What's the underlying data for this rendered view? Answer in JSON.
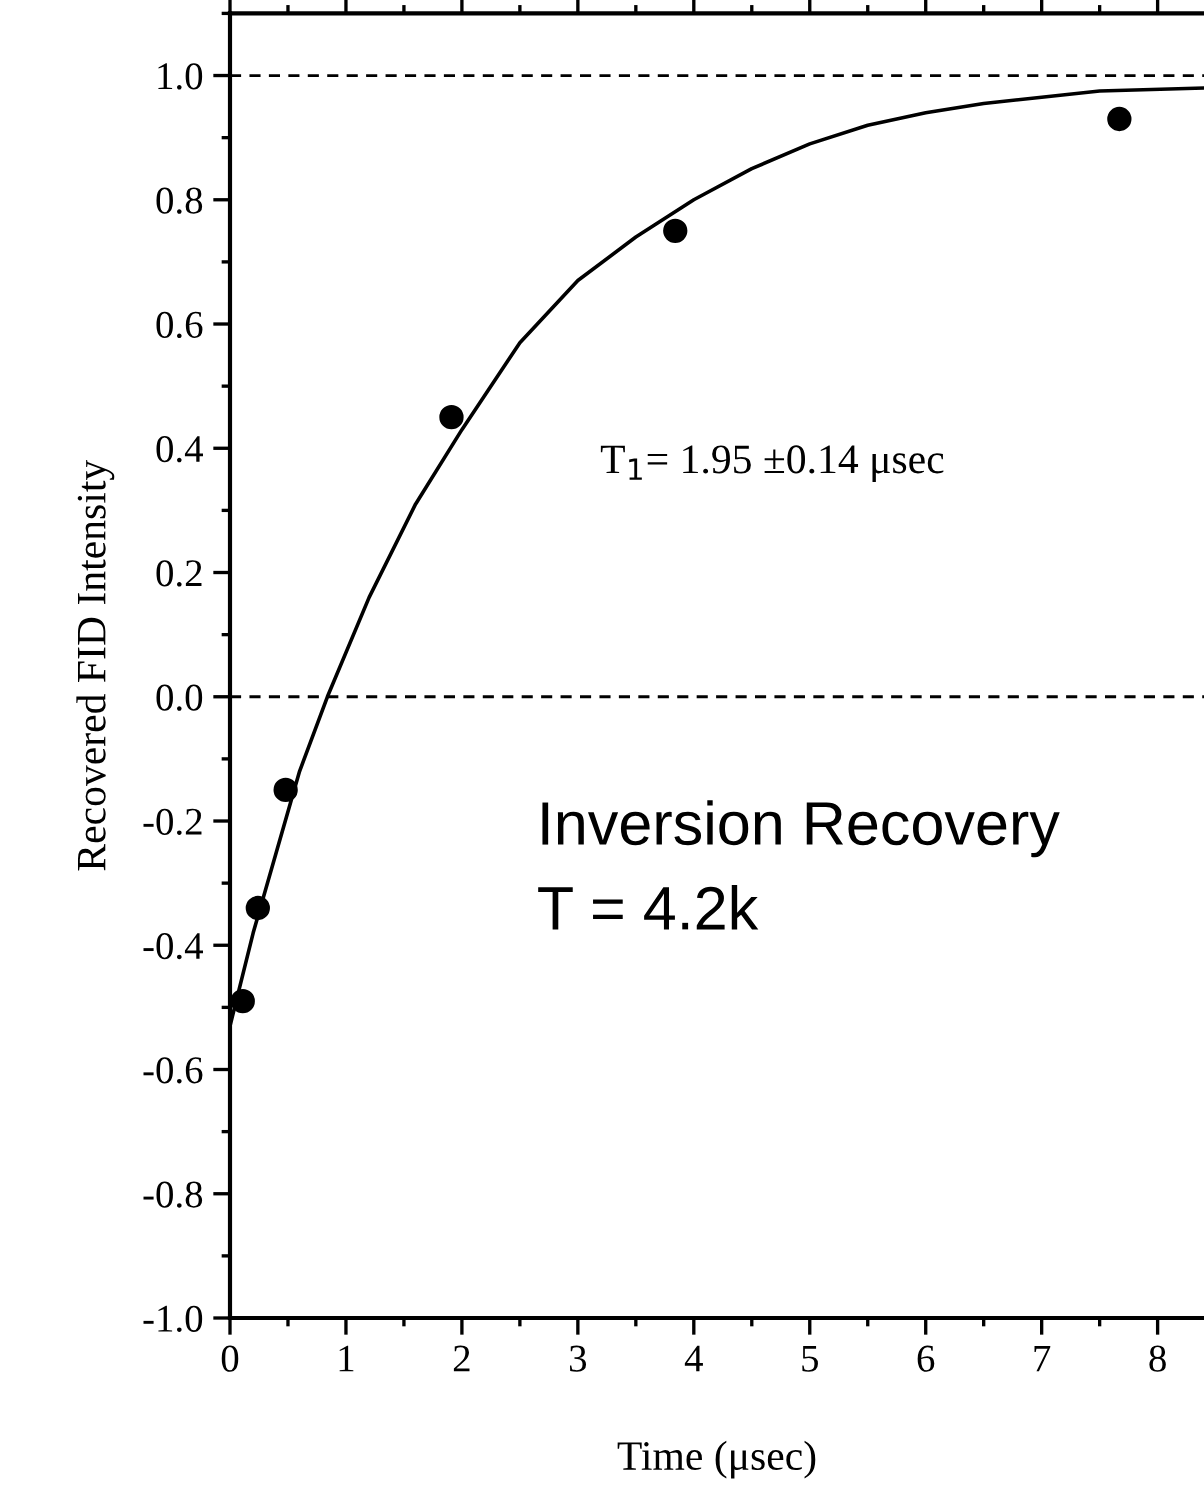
{
  "chart_data": {
    "type": "scatter",
    "xlabel": "Time (μsec)",
    "ylabel": "Recovered FID Intensity",
    "xlim": [
      0,
      8.4
    ],
    "xticks": [
      0,
      1,
      2,
      3,
      4,
      5,
      6,
      7,
      8
    ],
    "ylim": [
      -1.0,
      1.1
    ],
    "yticks": [
      {
        "value": -1.0,
        "label": "-1.0"
      },
      {
        "value": -0.8,
        "label": "-0.8"
      },
      {
        "value": -0.6,
        "label": "-0.6"
      },
      {
        "value": -0.4,
        "label": "-0.4"
      },
      {
        "value": -0.2,
        "label": "-0.2"
      },
      {
        "value": 0.0,
        "label": "0.0"
      },
      {
        "value": 0.2,
        "label": "0.2"
      },
      {
        "value": 0.4,
        "label": "0.4"
      },
      {
        "value": 0.6,
        "label": "0.6"
      },
      {
        "value": 0.8,
        "label": "0.8"
      },
      {
        "value": 1.0,
        "label": "1.0"
      }
    ],
    "grid": false,
    "series": [
      {
        "color": "#000000",
        "marker": "circle",
        "x": [
          0.11,
          0.24,
          0.48,
          1.91,
          3.84,
          7.67
        ],
        "values": [
          -0.49,
          -0.34,
          -0.15,
          0.45,
          0.75,
          0.93
        ]
      },
      {
        "type": "line",
        "color": "#000000",
        "line_style": "solid",
        "marker": "none",
        "x": [
          0,
          0.2,
          0.4,
          0.6,
          0.84,
          1.2,
          1.6,
          2.0,
          2.5,
          3.0,
          3.5,
          4.0,
          4.5,
          5.0,
          5.5,
          6.0,
          6.5,
          7.0,
          7.5,
          8.4
        ],
        "values": [
          -0.53,
          -0.38,
          -0.25,
          -0.12,
          0.0,
          0.16,
          0.31,
          0.43,
          0.57,
          0.67,
          0.74,
          0.8,
          0.85,
          0.89,
          0.92,
          0.94,
          0.955,
          0.965,
          0.975,
          0.98
        ]
      }
    ],
    "ref_lines": [
      {
        "axis": "y",
        "value": 0.0,
        "color": "#000000",
        "line_style": "dashed"
      },
      {
        "axis": "y",
        "value": 1.0,
        "color": "#000000",
        "line_style": "dashed"
      }
    ],
    "annotations": [
      "T$_{1}$= 1.95 ±0.14 μsec",
      "Inversion Recovery",
      "T = 4.2k"
    ]
  }
}
